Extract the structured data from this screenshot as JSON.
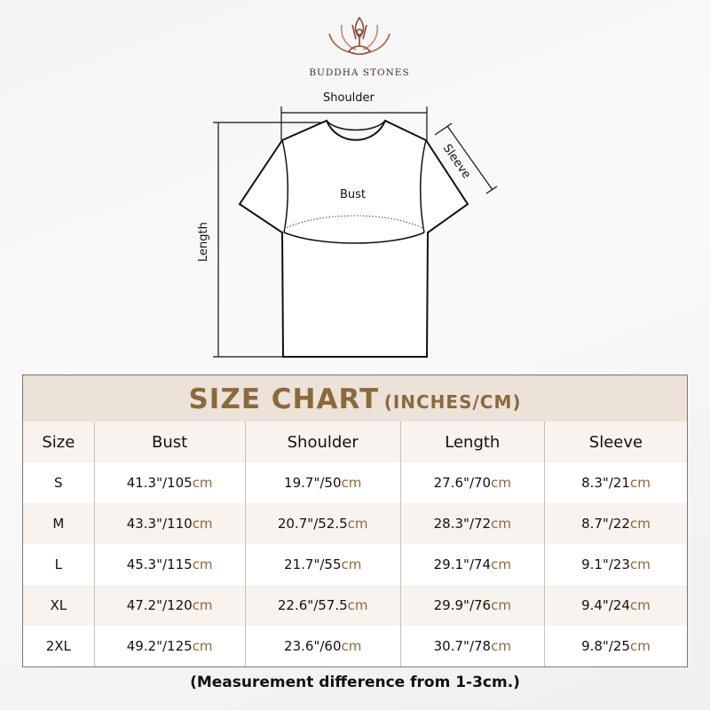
{
  "brand": {
    "name": "BUDDHA STONES",
    "icon": "lotus-meditation-logo",
    "color": "#8b4a36"
  },
  "diagram": {
    "shoulder": "Shoulder",
    "sleeve": "Sleeve",
    "bust": "Bust",
    "length": "Length"
  },
  "table": {
    "title": "SIZE CHART",
    "title_unit": "(INCHES/CM)",
    "headers": [
      "Size",
      "Bust",
      "Shoulder",
      "Length",
      "Sleeve"
    ],
    "rows": [
      {
        "size": "S",
        "values": [
          [
            "41.3\"/105",
            "cm"
          ],
          [
            "19.7\"/50",
            "cm"
          ],
          [
            "27.6\"/70",
            "cm"
          ],
          [
            "8.3\"/21",
            "cm"
          ]
        ]
      },
      {
        "size": "M",
        "values": [
          [
            "43.3\"/110",
            "cm"
          ],
          [
            "20.7\"/52.5",
            "cm"
          ],
          [
            "28.3\"/72",
            "cm"
          ],
          [
            "8.7\"/22",
            "cm"
          ]
        ]
      },
      {
        "size": "L",
        "values": [
          [
            "45.3\"/115",
            "cm"
          ],
          [
            "21.7\"/55",
            "cm"
          ],
          [
            "29.1\"/74",
            "cm"
          ],
          [
            "9.1\"/23",
            "cm"
          ]
        ]
      },
      {
        "size": "XL",
        "values": [
          [
            "47.2\"/120",
            "cm"
          ],
          [
            "22.6\"/57.5",
            "cm"
          ],
          [
            "29.9\"/76",
            "cm"
          ],
          [
            "9.4\"/24",
            "cm"
          ]
        ]
      },
      {
        "size": "2XL",
        "values": [
          [
            "49.2\"/125",
            "cm"
          ],
          [
            "23.6\"/60",
            "cm"
          ],
          [
            "30.7\"/78",
            "cm"
          ],
          [
            "9.8\"/25",
            "cm"
          ]
        ]
      }
    ]
  },
  "note": "(Measurement difference from 1-3cm.)",
  "colors": {
    "accent": "#8a6a3d",
    "title_bg": "#ede2d8",
    "alt_row": "#f8f3ef"
  }
}
